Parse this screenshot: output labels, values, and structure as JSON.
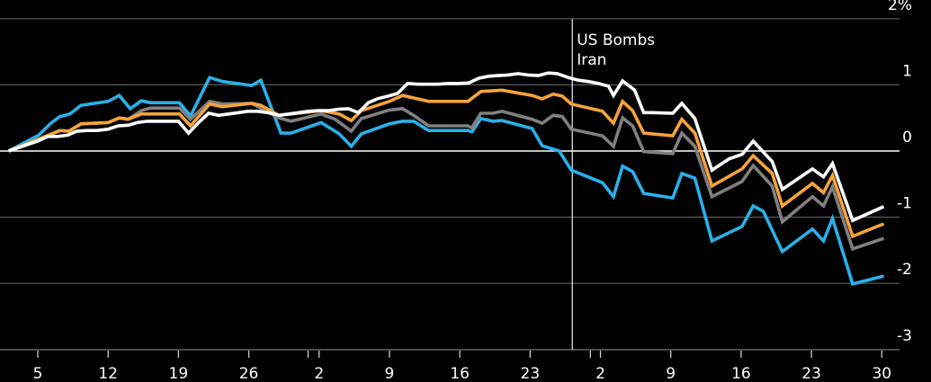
{
  "chart_data": {
    "type": "line",
    "title": "",
    "xlabel": "",
    "ylabel": "",
    "y_unit_label": "2%",
    "ylim": [
      -3,
      2
    ],
    "yticks": [
      {
        "value": 2,
        "label": "2%"
      },
      {
        "value": 1,
        "label": "1"
      },
      {
        "value": 0,
        "label": "0"
      },
      {
        "value": -1,
        "label": "-1"
      },
      {
        "value": -2,
        "label": "-2"
      },
      {
        "value": -3,
        "label": "-3"
      }
    ],
    "x_unit": "days since first labeled tick",
    "xlim": [
      -2.9,
      86
    ],
    "xticks": [
      {
        "value": 0,
        "label": "5"
      },
      {
        "value": 7,
        "label": "12"
      },
      {
        "value": 14,
        "label": "19"
      },
      {
        "value": 21,
        "label": "26"
      },
      {
        "value": 28,
        "label": "2"
      },
      {
        "value": 35,
        "label": "9"
      },
      {
        "value": 42,
        "label": "16"
      },
      {
        "value": 49,
        "label": "23"
      },
      {
        "value": 56,
        "label": "2"
      },
      {
        "value": 63,
        "label": "9"
      },
      {
        "value": 70,
        "label": "16"
      },
      {
        "value": 77,
        "label": "23"
      },
      {
        "value": 84,
        "label": "30"
      }
    ],
    "month_boundaries": [
      26.9,
      55
    ],
    "grid": true,
    "annotation": {
      "x": 53.2,
      "lines": [
        "US Bombs",
        "Iran"
      ]
    },
    "series": [
      {
        "name": "blue",
        "color": "#2ab0e8",
        "points": [
          [
            -2.9,
            0
          ],
          [
            0.1,
            0.24
          ],
          [
            1.3,
            0.42
          ],
          [
            2.2,
            0.52
          ],
          [
            3.2,
            0.56
          ],
          [
            4.3,
            0.69
          ],
          [
            7,
            0.75
          ],
          [
            8.1,
            0.84
          ],
          [
            9.2,
            0.64
          ],
          [
            10.3,
            0.76
          ],
          [
            11.2,
            0.73
          ],
          [
            14.1,
            0.73
          ],
          [
            15.2,
            0.53
          ],
          [
            17.1,
            1.11
          ],
          [
            18.4,
            1.05
          ],
          [
            21.3,
            0.99
          ],
          [
            22.2,
            1.07
          ],
          [
            24.2,
            0.27
          ],
          [
            25.2,
            0.27
          ],
          [
            28.2,
            0.43
          ],
          [
            30,
            0.26
          ],
          [
            31.2,
            0.07
          ],
          [
            32.2,
            0.26
          ],
          [
            35,
            0.41
          ],
          [
            36.3,
            0.45
          ],
          [
            37.4,
            0.45
          ],
          [
            38.9,
            0.31
          ],
          [
            42.8,
            0.31
          ],
          [
            43.2,
            0.29
          ],
          [
            44.1,
            0.49
          ],
          [
            45.3,
            0.45
          ],
          [
            46.2,
            0.46
          ],
          [
            49.2,
            0.34
          ],
          [
            50.2,
            0.08
          ],
          [
            51.9,
            0
          ],
          [
            53.1,
            -0.29
          ],
          [
            56.2,
            -0.48
          ],
          [
            57.3,
            -0.69
          ],
          [
            58.2,
            -0.23
          ],
          [
            59.2,
            -0.31
          ],
          [
            60.3,
            -0.64
          ],
          [
            63.2,
            -0.71
          ],
          [
            64.1,
            -0.34
          ],
          [
            65.4,
            -0.41
          ],
          [
            67.1,
            -1.36
          ],
          [
            70.1,
            -1.14
          ],
          [
            71.2,
            -0.83
          ],
          [
            72.2,
            -0.91
          ],
          [
            74.1,
            -1.52
          ],
          [
            77.1,
            -1.18
          ],
          [
            78.2,
            -1.36
          ],
          [
            79.1,
            -1.02
          ],
          [
            81.1,
            -2.01
          ],
          [
            84.2,
            -1.89
          ]
        ]
      },
      {
        "name": "gray",
        "color": "#808080",
        "points": [
          [
            -2.9,
            0
          ],
          [
            0.1,
            0.18
          ],
          [
            2.2,
            0.31
          ],
          [
            3.1,
            0.3
          ],
          [
            4.3,
            0.41
          ],
          [
            7,
            0.43
          ],
          [
            8.1,
            0.5
          ],
          [
            9,
            0.48
          ],
          [
            10.3,
            0.61
          ],
          [
            11.2,
            0.65
          ],
          [
            14.1,
            0.65
          ],
          [
            15.2,
            0.48
          ],
          [
            17.1,
            0.75
          ],
          [
            18.4,
            0.71
          ],
          [
            21.3,
            0.72
          ],
          [
            24,
            0.5
          ],
          [
            25.2,
            0.45
          ],
          [
            28.2,
            0.56
          ],
          [
            29.6,
            0.48
          ],
          [
            31.2,
            0.3
          ],
          [
            32.2,
            0.49
          ],
          [
            35,
            0.62
          ],
          [
            36.3,
            0.64
          ],
          [
            37.4,
            0.54
          ],
          [
            38.9,
            0.38
          ],
          [
            42.8,
            0.38
          ],
          [
            43.2,
            0.35
          ],
          [
            44.1,
            0.57
          ],
          [
            45.3,
            0.57
          ],
          [
            46.2,
            0.6
          ],
          [
            49.2,
            0.48
          ],
          [
            50.2,
            0.42
          ],
          [
            51.3,
            0.54
          ],
          [
            52.2,
            0.52
          ],
          [
            53.1,
            0.33
          ],
          [
            56.2,
            0.23
          ],
          [
            57.3,
            0.07
          ],
          [
            58.2,
            0.5
          ],
          [
            59.2,
            0.38
          ],
          [
            60.3,
            -0.01
          ],
          [
            63.2,
            -0.04
          ],
          [
            64.1,
            0.27
          ],
          [
            65.4,
            0.07
          ],
          [
            67.1,
            -0.69
          ],
          [
            70.1,
            -0.46
          ],
          [
            71.2,
            -0.22
          ],
          [
            73.1,
            -0.53
          ],
          [
            74.1,
            -1.07
          ],
          [
            77.1,
            -0.69
          ],
          [
            78.2,
            -0.83
          ],
          [
            79.1,
            -0.54
          ],
          [
            81.1,
            -1.48
          ],
          [
            84.2,
            -1.32
          ]
        ]
      },
      {
        "name": "orange",
        "color": "#f5a33a",
        "points": [
          [
            -2.9,
            0
          ],
          [
            0.1,
            0.18
          ],
          [
            2.2,
            0.31
          ],
          [
            3.1,
            0.3
          ],
          [
            4.3,
            0.41
          ],
          [
            7,
            0.43
          ],
          [
            8.1,
            0.5
          ],
          [
            9,
            0.48
          ],
          [
            10.3,
            0.56
          ],
          [
            14.1,
            0.56
          ],
          [
            15.2,
            0.38
          ],
          [
            17.1,
            0.71
          ],
          [
            18.4,
            0.67
          ],
          [
            21.3,
            0.72
          ],
          [
            22.2,
            0.69
          ],
          [
            24,
            0.54
          ],
          [
            28.2,
            0.61
          ],
          [
            30,
            0.56
          ],
          [
            31.2,
            0.46
          ],
          [
            32.2,
            0.61
          ],
          [
            35,
            0.75
          ],
          [
            36.3,
            0.84
          ],
          [
            38.9,
            0.75
          ],
          [
            42.8,
            0.75
          ],
          [
            44.1,
            0.9
          ],
          [
            46.2,
            0.92
          ],
          [
            49.2,
            0.84
          ],
          [
            50.2,
            0.79
          ],
          [
            51.3,
            0.86
          ],
          [
            52.2,
            0.83
          ],
          [
            53.1,
            0.71
          ],
          [
            56.2,
            0.6
          ],
          [
            57.3,
            0.42
          ],
          [
            58.2,
            0.75
          ],
          [
            59.2,
            0.61
          ],
          [
            60.3,
            0.27
          ],
          [
            63.2,
            0.23
          ],
          [
            64.1,
            0.48
          ],
          [
            65.4,
            0.27
          ],
          [
            67.1,
            -0.53
          ],
          [
            70.1,
            -0.27
          ],
          [
            71.2,
            -0.07
          ],
          [
            73.1,
            -0.34
          ],
          [
            74.1,
            -0.83
          ],
          [
            77.1,
            -0.49
          ],
          [
            78.2,
            -0.63
          ],
          [
            79.1,
            -0.37
          ],
          [
            81.1,
            -1.29
          ],
          [
            84.2,
            -1.1
          ]
        ]
      },
      {
        "name": "white",
        "color": "#ffffff",
        "points": [
          [
            -2.9,
            0
          ],
          [
            0,
            0.15
          ],
          [
            1,
            0.22
          ],
          [
            2,
            0.22
          ],
          [
            3,
            0.24
          ],
          [
            3.9,
            0.3
          ],
          [
            4.9,
            0.31
          ],
          [
            5.9,
            0.31
          ],
          [
            7,
            0.33
          ],
          [
            8,
            0.38
          ],
          [
            9,
            0.39
          ],
          [
            9.9,
            0.43
          ],
          [
            10.9,
            0.45
          ],
          [
            14,
            0.45
          ],
          [
            15,
            0.27
          ],
          [
            16,
            0.43
          ],
          [
            17,
            0.57
          ],
          [
            18,
            0.54
          ],
          [
            19,
            0.56
          ],
          [
            20,
            0.58
          ],
          [
            20.9,
            0.6
          ],
          [
            21.9,
            0.6
          ],
          [
            22.9,
            0.58
          ],
          [
            24,
            0.54
          ],
          [
            25,
            0.56
          ],
          [
            26,
            0.58
          ],
          [
            26.9,
            0.6
          ],
          [
            27.9,
            0.61
          ],
          [
            28.9,
            0.61
          ],
          [
            29.9,
            0.63
          ],
          [
            30.9,
            0.64
          ],
          [
            31.9,
            0.58
          ],
          [
            32.9,
            0.73
          ],
          [
            33.8,
            0.79
          ],
          [
            34.9,
            0.83
          ],
          [
            35.8,
            0.87
          ],
          [
            36.8,
            1.02
          ],
          [
            37.9,
            1.01
          ],
          [
            39.8,
            1.01
          ],
          [
            40.8,
            1.02
          ],
          [
            41.9,
            1.02
          ],
          [
            42.9,
            1.03
          ],
          [
            43.9,
            1.1
          ],
          [
            44.9,
            1.13
          ],
          [
            45.8,
            1.14
          ],
          [
            46.8,
            1.15
          ],
          [
            47.8,
            1.17
          ],
          [
            48.8,
            1.15
          ],
          [
            49.8,
            1.14
          ],
          [
            50.8,
            1.18
          ],
          [
            51.7,
            1.17
          ],
          [
            52.8,
            1.11
          ],
          [
            53.8,
            1.07
          ],
          [
            54.8,
            1.05
          ],
          [
            55.8,
            1.02
          ],
          [
            56.8,
            0.98
          ],
          [
            57.3,
            0.84
          ],
          [
            58.2,
            1.06
          ],
          [
            59.4,
            0.92
          ],
          [
            60.3,
            0.58
          ],
          [
            61.2,
            0.58
          ],
          [
            63.2,
            0.57
          ],
          [
            64.1,
            0.72
          ],
          [
            65.4,
            0.49
          ],
          [
            67.1,
            -0.29
          ],
          [
            68.8,
            -0.12
          ],
          [
            70.1,
            -0.05
          ],
          [
            71.2,
            0.15
          ],
          [
            73.1,
            -0.16
          ],
          [
            74.1,
            -0.58
          ],
          [
            77.1,
            -0.27
          ],
          [
            78.2,
            -0.39
          ],
          [
            79.1,
            -0.19
          ],
          [
            81.1,
            -1.05
          ],
          [
            84.2,
            -0.84
          ]
        ]
      }
    ]
  }
}
